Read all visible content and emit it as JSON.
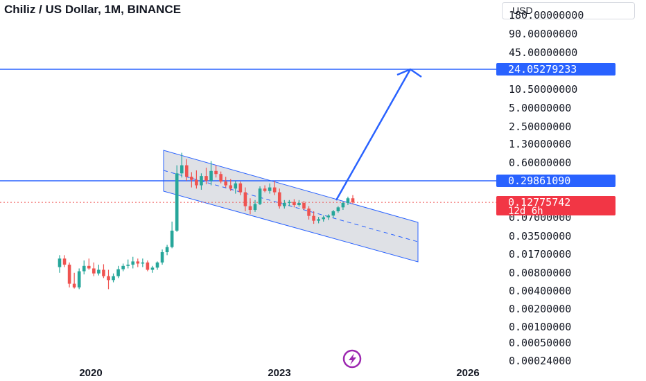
{
  "header": {
    "title": "Chiliz / US Dollar, 1M, BINANCE",
    "currency": "USD"
  },
  "chart_data": {
    "type": "candlestick",
    "scale": "log",
    "y_ticks": [
      "180.00000000",
      "90.00000000",
      "45.00000000",
      "10.50000000",
      "5.00000000",
      "2.50000000",
      "1.30000000",
      "0.60000000",
      "0.07000000",
      "0.03500000",
      "0.01700000",
      "0.00800000",
      "0.00400000",
      "0.00200000",
      "0.00100000",
      "0.00050000",
      "0.00024000"
    ],
    "x_ticks": [
      "2020",
      "2023",
      "2026"
    ],
    "price_tags": [
      {
        "label": "24.05279233",
        "value": 24.05279233,
        "color": "#2962ff"
      },
      {
        "label": "0.29861090",
        "value": 0.2986109,
        "color": "#2962ff"
      },
      {
        "label": "0.12775742",
        "sub": "12d 6h",
        "value": 0.12775742,
        "color": "#f23645"
      }
    ],
    "horizontal_lines": [
      24.05279233,
      0.2986109
    ],
    "current_price_line": 0.12775742,
    "candles": [
      {
        "o": 0.01,
        "h": 0.016,
        "l": 0.008,
        "c": 0.014
      },
      {
        "o": 0.014,
        "h": 0.016,
        "l": 0.01,
        "c": 0.011
      },
      {
        "o": 0.011,
        "h": 0.012,
        "l": 0.0045,
        "c": 0.0052
      },
      {
        "o": 0.0052,
        "h": 0.008,
        "l": 0.0043,
        "c": 0.0045
      },
      {
        "o": 0.0045,
        "h": 0.0095,
        "l": 0.0042,
        "c": 0.0085
      },
      {
        "o": 0.0085,
        "h": 0.013,
        "l": 0.0075,
        "c": 0.0105
      },
      {
        "o": 0.0105,
        "h": 0.014,
        "l": 0.009,
        "c": 0.0095
      },
      {
        "o": 0.0095,
        "h": 0.012,
        "l": 0.007,
        "c": 0.0078
      },
      {
        "o": 0.0078,
        "h": 0.011,
        "l": 0.0072,
        "c": 0.009
      },
      {
        "o": 0.009,
        "h": 0.0112,
        "l": 0.0065,
        "c": 0.007
      },
      {
        "o": 0.007,
        "h": 0.009,
        "l": 0.0042,
        "c": 0.006
      },
      {
        "o": 0.006,
        "h": 0.0078,
        "l": 0.0055,
        "c": 0.007
      },
      {
        "o": 0.007,
        "h": 0.0105,
        "l": 0.0065,
        "c": 0.0092
      },
      {
        "o": 0.0092,
        "h": 0.0115,
        "l": 0.0085,
        "c": 0.0105
      },
      {
        "o": 0.0105,
        "h": 0.0135,
        "l": 0.0095,
        "c": 0.011
      },
      {
        "o": 0.011,
        "h": 0.015,
        "l": 0.0095,
        "c": 0.0125
      },
      {
        "o": 0.0125,
        "h": 0.014,
        "l": 0.01,
        "c": 0.0115
      },
      {
        "o": 0.0115,
        "h": 0.014,
        "l": 0.01,
        "c": 0.012
      },
      {
        "o": 0.012,
        "h": 0.013,
        "l": 0.0085,
        "c": 0.009
      },
      {
        "o": 0.009,
        "h": 0.0105,
        "l": 0.008,
        "c": 0.0098
      },
      {
        "o": 0.0098,
        "h": 0.0125,
        "l": 0.009,
        "c": 0.012
      },
      {
        "o": 0.012,
        "h": 0.02,
        "l": 0.011,
        "c": 0.018
      },
      {
        "o": 0.018,
        "h": 0.024,
        "l": 0.016,
        "c": 0.022
      },
      {
        "o": 0.022,
        "h": 0.06,
        "l": 0.021,
        "c": 0.042
      },
      {
        "o": 0.042,
        "h": 0.55,
        "l": 0.04,
        "c": 0.4
      },
      {
        "o": 0.4,
        "h": 0.9,
        "l": 0.34,
        "c": 0.55
      },
      {
        "o": 0.55,
        "h": 0.7,
        "l": 0.3,
        "c": 0.35
      },
      {
        "o": 0.35,
        "h": 0.42,
        "l": 0.23,
        "c": 0.31
      },
      {
        "o": 0.31,
        "h": 0.45,
        "l": 0.22,
        "c": 0.25
      },
      {
        "o": 0.25,
        "h": 0.4,
        "l": 0.21,
        "c": 0.36
      },
      {
        "o": 0.36,
        "h": 0.5,
        "l": 0.26,
        "c": 0.3
      },
      {
        "o": 0.3,
        "h": 0.65,
        "l": 0.25,
        "c": 0.44
      },
      {
        "o": 0.44,
        "h": 0.55,
        "l": 0.34,
        "c": 0.39
      },
      {
        "o": 0.39,
        "h": 0.43,
        "l": 0.27,
        "c": 0.29
      },
      {
        "o": 0.29,
        "h": 0.35,
        "l": 0.23,
        "c": 0.25
      },
      {
        "o": 0.25,
        "h": 0.32,
        "l": 0.2,
        "c": 0.22
      },
      {
        "o": 0.22,
        "h": 0.3,
        "l": 0.18,
        "c": 0.27
      },
      {
        "o": 0.27,
        "h": 0.29,
        "l": 0.17,
        "c": 0.19
      },
      {
        "o": 0.19,
        "h": 0.23,
        "l": 0.09,
        "c": 0.11
      },
      {
        "o": 0.11,
        "h": 0.15,
        "l": 0.08,
        "c": 0.095
      },
      {
        "o": 0.095,
        "h": 0.14,
        "l": 0.088,
        "c": 0.12
      },
      {
        "o": 0.12,
        "h": 0.24,
        "l": 0.115,
        "c": 0.22
      },
      {
        "o": 0.22,
        "h": 0.25,
        "l": 0.19,
        "c": 0.2
      },
      {
        "o": 0.2,
        "h": 0.27,
        "l": 0.18,
        "c": 0.23
      },
      {
        "o": 0.23,
        "h": 0.3,
        "l": 0.17,
        "c": 0.19
      },
      {
        "o": 0.19,
        "h": 0.22,
        "l": 0.1,
        "c": 0.11
      },
      {
        "o": 0.11,
        "h": 0.14,
        "l": 0.1,
        "c": 0.125
      },
      {
        "o": 0.125,
        "h": 0.14,
        "l": 0.11,
        "c": 0.13
      },
      {
        "o": 0.13,
        "h": 0.145,
        "l": 0.105,
        "c": 0.115
      },
      {
        "o": 0.115,
        "h": 0.14,
        "l": 0.108,
        "c": 0.125
      },
      {
        "o": 0.125,
        "h": 0.135,
        "l": 0.095,
        "c": 0.1
      },
      {
        "o": 0.1,
        "h": 0.11,
        "l": 0.065,
        "c": 0.075
      },
      {
        "o": 0.075,
        "h": 0.09,
        "l": 0.055,
        "c": 0.062
      },
      {
        "o": 0.062,
        "h": 0.072,
        "l": 0.056,
        "c": 0.066
      },
      {
        "o": 0.066,
        "h": 0.076,
        "l": 0.06,
        "c": 0.071
      },
      {
        "o": 0.071,
        "h": 0.08,
        "l": 0.064,
        "c": 0.076
      },
      {
        "o": 0.076,
        "h": 0.095,
        "l": 0.07,
        "c": 0.09
      },
      {
        "o": 0.09,
        "h": 0.11,
        "l": 0.085,
        "c": 0.105
      },
      {
        "o": 0.105,
        "h": 0.13,
        "l": 0.095,
        "c": 0.125
      },
      {
        "o": 0.125,
        "h": 0.16,
        "l": 0.115,
        "c": 0.15
      },
      {
        "o": 0.15,
        "h": 0.17,
        "l": 0.12,
        "c": 0.1278
      }
    ],
    "colors": {
      "up": "#26a69a",
      "down": "#ef5350",
      "line": "#2962ff",
      "channel_fill": "#d1d4dc"
    }
  }
}
